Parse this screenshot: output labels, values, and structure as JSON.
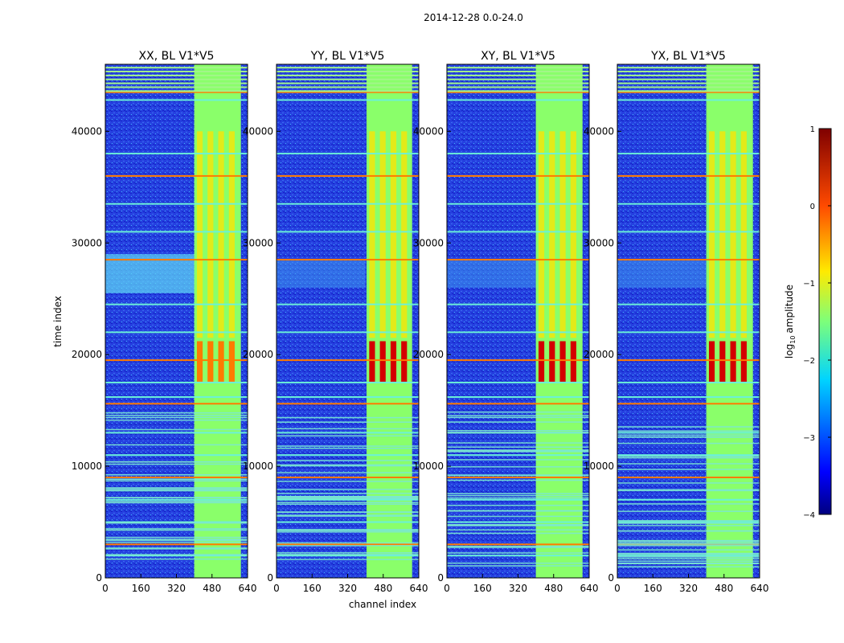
{
  "suptitle": "2014-12-28 0.0-24.0",
  "chart_data": [
    {
      "type": "heatmap",
      "title": "XX, BL V1*V5",
      "xlabel": "channel index",
      "ylabel": "time index",
      "xlim": [
        0,
        640
      ],
      "ylim": [
        0,
        46000
      ],
      "xticks": [
        "0",
        "160",
        "320",
        "480",
        "640"
      ],
      "yticks": [
        "0",
        "10000",
        "20000",
        "30000",
        "40000"
      ],
      "color_scale": "log10 amplitude, jet colormap"
    },
    {
      "type": "heatmap",
      "title": "YY, BL V1*V5",
      "xlim": [
        0,
        640
      ],
      "ylim": [
        0,
        46000
      ],
      "xticks": [
        "0",
        "160",
        "320",
        "480",
        "640"
      ],
      "yticks": [
        "0",
        "10000",
        "20000",
        "30000",
        "40000"
      ]
    },
    {
      "type": "heatmap",
      "title": "XY, BL V1*V5",
      "xlim": [
        0,
        640
      ],
      "ylim": [
        0,
        46000
      ],
      "xticks": [
        "0",
        "160",
        "320",
        "480",
        "640"
      ],
      "yticks": [
        "0",
        "10000",
        "20000",
        "30000",
        "40000"
      ]
    },
    {
      "type": "heatmap",
      "title": "YX, BL V1*V5",
      "xlim": [
        0,
        640
      ],
      "ylim": [
        0,
        46000
      ],
      "xticks": [
        "0",
        "160",
        "320",
        "480",
        "640"
      ],
      "yticks": [
        "0",
        "10000",
        "20000",
        "30000",
        "40000"
      ]
    }
  ],
  "colorbar": {
    "label": "amplitude",
    "label_prefix": "log",
    "label_sub": "10",
    "range": [
      -4,
      1
    ],
    "ticks": [
      "1",
      "0",
      "−1",
      "−2",
      "−3",
      "−4"
    ]
  },
  "colors": {
    "deep_blue": "#1a2fd8",
    "cyan": "#33e6ff",
    "green": "#8aff6a",
    "yellow": "#f2e60a",
    "orange": "#ff7a00",
    "red": "#d40000"
  }
}
